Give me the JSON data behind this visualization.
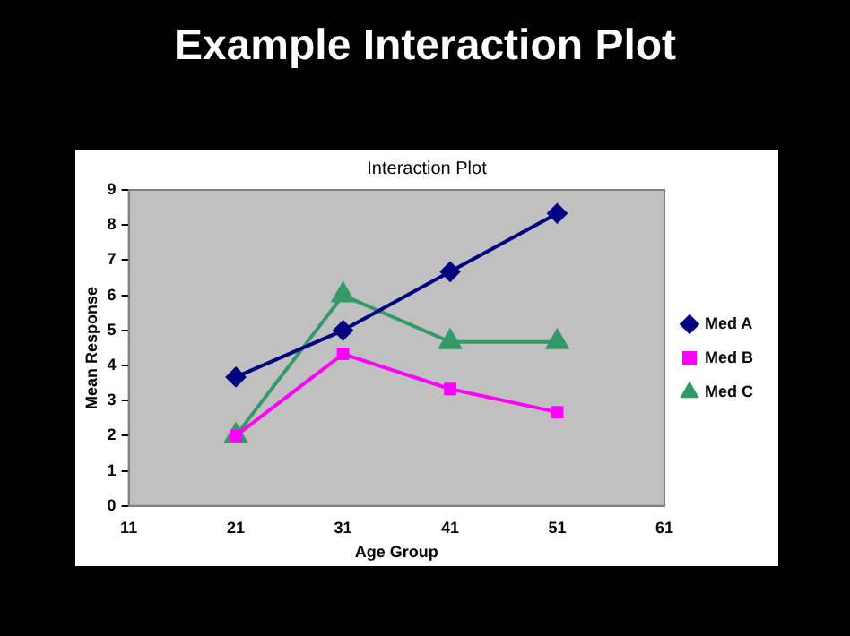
{
  "chart_data": {
    "type": "line",
    "title": "Example Interaction Plot",
    "subtitle": "Interaction Plot",
    "xlabel": "Age Group",
    "ylabel": "Mean Response",
    "x": [
      21,
      31,
      41,
      51
    ],
    "xlim": [
      11,
      61
    ],
    "xticks": [
      11,
      21,
      31,
      41,
      51,
      61
    ],
    "ylim": [
      0,
      9
    ],
    "yticks": [
      0,
      1,
      2,
      3,
      4,
      5,
      6,
      7,
      8,
      9
    ],
    "grid": false,
    "legend": "right",
    "series": [
      {
        "name": "Med A",
        "color": "#000080",
        "marker": "diamond",
        "values": [
          3.67,
          5,
          6.67,
          8.33
        ]
      },
      {
        "name": "Med B",
        "color": "#ff00ff",
        "marker": "square",
        "values": [
          2,
          4.33,
          3.33,
          2.67
        ]
      },
      {
        "name": "Med C",
        "color": "#339966",
        "marker": "triangle",
        "values": [
          2,
          6,
          4.67,
          4.67
        ]
      }
    ]
  }
}
